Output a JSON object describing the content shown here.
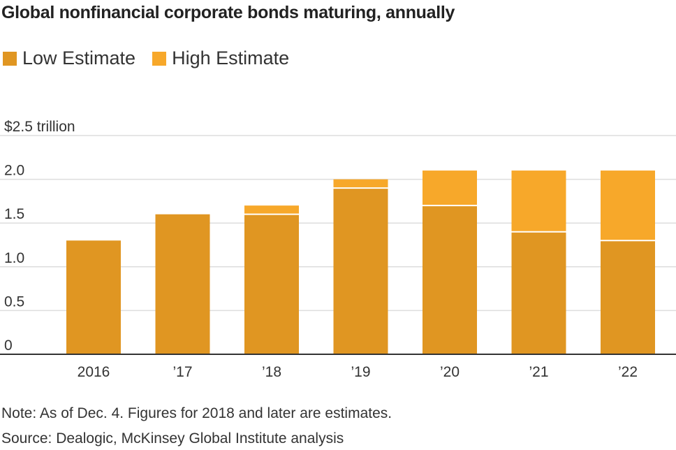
{
  "colors": {
    "low": "#e09622",
    "high": "#f7a82a",
    "grid": "#dddddd",
    "axis": "#333333",
    "divider": "#ffffff"
  },
  "chart_data": {
    "type": "bar",
    "stacked": true,
    "title": "Global nonfinancial corporate bonds maturing, annually",
    "categories": [
      "2016",
      "’17",
      "’18",
      "’19",
      "’20",
      "’21",
      "’22"
    ],
    "series": [
      {
        "name": "Low Estimate",
        "values": [
          1.3,
          1.6,
          1.6,
          1.9,
          1.7,
          1.4,
          1.3
        ]
      },
      {
        "name": "High Estimate",
        "values": [
          0,
          0,
          0.1,
          0.1,
          0.4,
          0.7,
          0.8
        ]
      }
    ],
    "ylim": [
      0,
      2.5
    ],
    "yticks": [
      0,
      0.5,
      1.0,
      1.5,
      2.0,
      2.5
    ],
    "ytick_labels": [
      "0",
      "0.5",
      "1.0",
      "1.5",
      "2.0",
      "$2.5 trillion"
    ],
    "grid": true,
    "legend_position": "top-left"
  },
  "notes": {
    "note": "Note: As of Dec. 4. Figures for 2018 and later are estimates.",
    "source": "Source: Dealogic, McKinsey Global Institute analysis"
  }
}
